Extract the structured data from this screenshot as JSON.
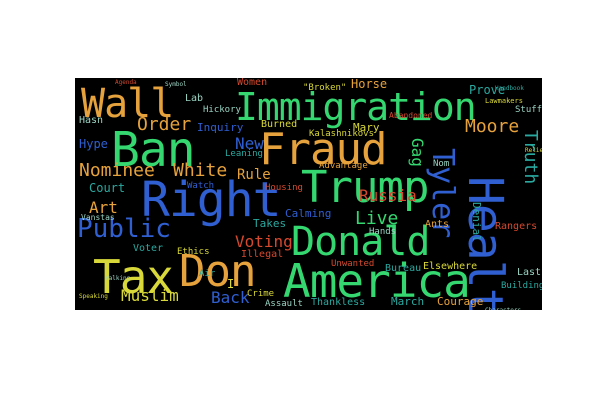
{
  "palette": {
    "background": "#000000",
    "blue": "#2f5fd0",
    "green": "#35d870",
    "orange": "#e6a23c",
    "yellow": "#d8d83a",
    "red": "#d5492e",
    "teal": "#2aa9a0",
    "light": "#9ad3c2"
  },
  "words": {
    "wall": "Wall",
    "immigration": "Immigration",
    "fraud": "Fraud",
    "ban": "Ban",
    "right": "Right",
    "trump": "Trump",
    "donald": "Donald",
    "don": "Don",
    "america": "America",
    "tax": "Tax",
    "health": "Health",
    "tyler": "Tyler",
    "public": "Public",
    "nominee": "Nominee",
    "white": "White",
    "order": "Order",
    "moore": "Moore",
    "truth": "Truth",
    "voting": "Voting",
    "russia": "Russia",
    "muslim": "Muslim",
    "back": "Back",
    "live": "Live",
    "art": "Art",
    "new": "New",
    "gag": "Gag",
    "rule": "Rule",
    "court": "Court",
    "hype": "Hype",
    "mary": "Mary",
    "women": "Women",
    "horse": "Horse",
    "broken": "\"Broken\"",
    "prove": "Prove",
    "lab": "Lab",
    "hasn": "Hasn",
    "inquiry": "Inquiry",
    "burned": "Burned",
    "kalashnikovs": "Kalashnikovs",
    "leaning": "Leaning",
    "advantage": "Advantage",
    "housing": "Housing",
    "calming": "Calming",
    "takes": "Takes",
    "illegal": "Illegal",
    "hands": "Hands",
    "unwanted": "Unwanted",
    "bureau": "Bureau",
    "elsewhere": "Elsewhere",
    "march": "March",
    "courage": "Courage",
    "thankless": "Thankless",
    "assault": "Assault",
    "crime": "Crime",
    "ethics": "Ethics",
    "voter": "Voter",
    "watch": "Watch",
    "denial": "Denial",
    "rangers": "Rangers",
    "ants": "Ants",
    "last": "Last",
    "building": "Building",
    "stuff": "Stuff",
    "air": "Air",
    "lawmakers": "Lawmakers",
    "hickory": "Hickory",
    "vanstas": "Vanstas",
    "nom": "Nom",
    "abandoned": "Abandoned",
    "i": "I"
  }
}
